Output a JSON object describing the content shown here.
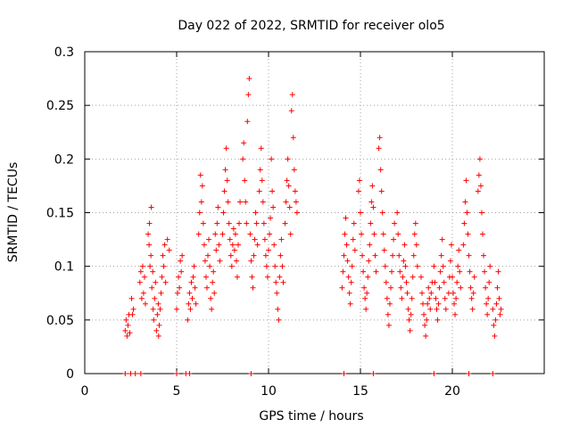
{
  "chart_data": {
    "type": "scatter",
    "title": "Day 022 of 2022, SRMTID for receiver olo5",
    "xlabel": "GPS time / hours",
    "ylabel": "SRMTID / TECUs",
    "xlim": [
      0,
      25
    ],
    "ylim": [
      0,
      0.3
    ],
    "xticks": [
      0,
      5,
      10,
      15,
      20
    ],
    "xtick_labels": [
      "0",
      "5",
      "10",
      "15",
      "20"
    ],
    "yticks": [
      0,
      0.05,
      0.1,
      0.15,
      0.2,
      0.25,
      0.3
    ],
    "ytick_labels": [
      "0",
      "0.05",
      "0.1",
      "0.15",
      "0.2",
      "0.25",
      "0.3"
    ],
    "grid": true,
    "marker": "+",
    "color": "#ff0000",
    "series": [
      {
        "name": "SRMTID",
        "points": [
          [
            2.2,
            0.04
          ],
          [
            2.25,
            0.05
          ],
          [
            2.3,
            0.035
          ],
          [
            2.35,
            0.045
          ],
          [
            2.4,
            0.055
          ],
          [
            2.45,
            0.038
          ],
          [
            2.55,
            0.07
          ],
          [
            2.6,
            0.055
          ],
          [
            2.65,
            0.06
          ],
          [
            3.0,
            0.085
          ],
          [
            3.05,
            0.095
          ],
          [
            3.1,
            0.07
          ],
          [
            3.15,
            0.1
          ],
          [
            3.2,
            0.075
          ],
          [
            3.25,
            0.09
          ],
          [
            3.3,
            0.065
          ],
          [
            3.45,
            0.13
          ],
          [
            3.5,
            0.12
          ],
          [
            3.52,
            0.14
          ],
          [
            3.55,
            0.1
          ],
          [
            3.6,
            0.11
          ],
          [
            3.62,
            0.155
          ],
          [
            3.65,
            0.08
          ],
          [
            3.7,
            0.095
          ],
          [
            3.72,
            0.06
          ],
          [
            3.75,
            0.05
          ],
          [
            3.8,
            0.07
          ],
          [
            3.85,
            0.085
          ],
          [
            3.9,
            0.04
          ],
          [
            3.95,
            0.055
          ],
          [
            4.0,
            0.065
          ],
          [
            4.02,
            0.035
          ],
          [
            4.05,
            0.045
          ],
          [
            4.1,
            0.06
          ],
          [
            4.15,
            0.075
          ],
          [
            4.2,
            0.09
          ],
          [
            4.25,
            0.11
          ],
          [
            4.3,
            0.1
          ],
          [
            4.35,
            0.12
          ],
          [
            4.4,
            0.085
          ],
          [
            4.5,
            0.125
          ],
          [
            4.6,
            0.115
          ],
          [
            5.0,
            0.06
          ],
          [
            5.05,
            0.075
          ],
          [
            5.1,
            0.09
          ],
          [
            5.15,
            0.08
          ],
          [
            5.2,
            0.105
          ],
          [
            5.25,
            0.095
          ],
          [
            5.3,
            0.11
          ],
          [
            5.6,
            0.05
          ],
          [
            5.65,
            0.065
          ],
          [
            5.7,
            0.075
          ],
          [
            5.75,
            0.06
          ],
          [
            5.8,
            0.085
          ],
          [
            5.85,
            0.07
          ],
          [
            5.9,
            0.09
          ],
          [
            5.95,
            0.1
          ],
          [
            6.0,
            0.08
          ],
          [
            6.05,
            0.065
          ],
          [
            6.2,
            0.13
          ],
          [
            6.25,
            0.15
          ],
          [
            6.3,
            0.185
          ],
          [
            6.35,
            0.16
          ],
          [
            6.4,
            0.175
          ],
          [
            6.45,
            0.14
          ],
          [
            6.5,
            0.12
          ],
          [
            6.55,
            0.105
          ],
          [
            6.6,
            0.09
          ],
          [
            6.65,
            0.08
          ],
          [
            6.7,
            0.11
          ],
          [
            6.75,
            0.125
          ],
          [
            6.8,
            0.1
          ],
          [
            6.85,
            0.07
          ],
          [
            6.9,
            0.06
          ],
          [
            6.95,
            0.085
          ],
          [
            7.0,
            0.095
          ],
          [
            7.05,
            0.075
          ],
          [
            7.1,
            0.13
          ],
          [
            7.15,
            0.115
          ],
          [
            7.2,
            0.14
          ],
          [
            7.25,
            0.155
          ],
          [
            7.3,
            0.12
          ],
          [
            7.35,
            0.105
          ],
          [
            7.5,
            0.13
          ],
          [
            7.55,
            0.15
          ],
          [
            7.6,
            0.17
          ],
          [
            7.65,
            0.19
          ],
          [
            7.7,
            0.21
          ],
          [
            7.75,
            0.18
          ],
          [
            7.8,
            0.16
          ],
          [
            7.85,
            0.14
          ],
          [
            7.9,
            0.125
          ],
          [
            7.95,
            0.11
          ],
          [
            8.0,
            0.1
          ],
          [
            8.05,
            0.12
          ],
          [
            8.1,
            0.135
          ],
          [
            8.15,
            0.115
          ],
          [
            8.2,
            0.13
          ],
          [
            8.25,
            0.105
          ],
          [
            8.3,
            0.09
          ],
          [
            8.35,
            0.12
          ],
          [
            8.4,
            0.14
          ],
          [
            8.45,
            0.16
          ],
          [
            8.6,
            0.2
          ],
          [
            8.65,
            0.215
          ],
          [
            8.7,
            0.18
          ],
          [
            8.75,
            0.16
          ],
          [
            8.8,
            0.14
          ],
          [
            8.85,
            0.235
          ],
          [
            8.9,
            0.26
          ],
          [
            8.95,
            0.275
          ],
          [
            9.0,
            0.13
          ],
          [
            9.05,
            0.105
          ],
          [
            9.1,
            0.09
          ],
          [
            9.15,
            0.08
          ],
          [
            9.2,
            0.11
          ],
          [
            9.25,
            0.125
          ],
          [
            9.3,
            0.15
          ],
          [
            9.35,
            0.14
          ],
          [
            9.4,
            0.12
          ],
          [
            9.5,
            0.17
          ],
          [
            9.55,
            0.19
          ],
          [
            9.6,
            0.21
          ],
          [
            9.65,
            0.18
          ],
          [
            9.7,
            0.16
          ],
          [
            9.75,
            0.14
          ],
          [
            9.8,
            0.125
          ],
          [
            9.85,
            0.11
          ],
          [
            9.9,
            0.1
          ],
          [
            9.95,
            0.09
          ],
          [
            10.0,
            0.115
          ],
          [
            10.05,
            0.13
          ],
          [
            10.1,
            0.145
          ],
          [
            10.15,
            0.2
          ],
          [
            10.2,
            0.17
          ],
          [
            10.25,
            0.155
          ],
          [
            10.3,
            0.12
          ],
          [
            10.35,
            0.1
          ],
          [
            10.4,
            0.085
          ],
          [
            10.45,
            0.075
          ],
          [
            10.5,
            0.06
          ],
          [
            10.55,
            0.05
          ],
          [
            10.6,
            0.09
          ],
          [
            10.65,
            0.11
          ],
          [
            10.7,
            0.125
          ],
          [
            10.75,
            0.1
          ],
          [
            10.8,
            0.085
          ],
          [
            10.9,
            0.14
          ],
          [
            10.95,
            0.16
          ],
          [
            11.0,
            0.18
          ],
          [
            11.05,
            0.2
          ],
          [
            11.1,
            0.175
          ],
          [
            11.15,
            0.155
          ],
          [
            11.2,
            0.13
          ],
          [
            11.25,
            0.245
          ],
          [
            11.3,
            0.26
          ],
          [
            11.35,
            0.22
          ],
          [
            11.4,
            0.19
          ],
          [
            11.45,
            0.17
          ],
          [
            11.5,
            0.16
          ],
          [
            11.55,
            0.15
          ],
          [
            14.0,
            0.08
          ],
          [
            14.05,
            0.095
          ],
          [
            14.1,
            0.11
          ],
          [
            14.15,
            0.13
          ],
          [
            14.2,
            0.145
          ],
          [
            14.25,
            0.12
          ],
          [
            14.3,
            0.105
          ],
          [
            14.35,
            0.09
          ],
          [
            14.4,
            0.075
          ],
          [
            14.45,
            0.065
          ],
          [
            14.5,
            0.085
          ],
          [
            14.55,
            0.1
          ],
          [
            14.6,
            0.125
          ],
          [
            14.65,
            0.14
          ],
          [
            14.7,
            0.115
          ],
          [
            14.9,
            0.17
          ],
          [
            14.95,
            0.18
          ],
          [
            15.0,
            0.15
          ],
          [
            15.05,
            0.13
          ],
          [
            15.1,
            0.11
          ],
          [
            15.15,
            0.095
          ],
          [
            15.2,
            0.08
          ],
          [
            15.25,
            0.07
          ],
          [
            15.3,
            0.06
          ],
          [
            15.35,
            0.075
          ],
          [
            15.4,
            0.09
          ],
          [
            15.45,
            0.105
          ],
          [
            15.5,
            0.12
          ],
          [
            15.55,
            0.14
          ],
          [
            15.6,
            0.16
          ],
          [
            15.65,
            0.175
          ],
          [
            15.7,
            0.155
          ],
          [
            15.75,
            0.13
          ],
          [
            15.8,
            0.11
          ],
          [
            15.85,
            0.095
          ],
          [
            16.0,
            0.21
          ],
          [
            16.05,
            0.22
          ],
          [
            16.1,
            0.19
          ],
          [
            16.15,
            0.17
          ],
          [
            16.2,
            0.15
          ],
          [
            16.25,
            0.13
          ],
          [
            16.3,
            0.115
          ],
          [
            16.35,
            0.1
          ],
          [
            16.4,
            0.085
          ],
          [
            16.45,
            0.07
          ],
          [
            16.5,
            0.055
          ],
          [
            16.55,
            0.045
          ],
          [
            16.6,
            0.065
          ],
          [
            16.65,
            0.08
          ],
          [
            16.7,
            0.095
          ],
          [
            16.75,
            0.11
          ],
          [
            16.8,
            0.125
          ],
          [
            16.85,
            0.14
          ],
          [
            17.0,
            0.15
          ],
          [
            17.05,
            0.13
          ],
          [
            17.1,
            0.11
          ],
          [
            17.15,
            0.095
          ],
          [
            17.2,
            0.08
          ],
          [
            17.25,
            0.07
          ],
          [
            17.3,
            0.09
          ],
          [
            17.35,
            0.105
          ],
          [
            17.4,
            0.12
          ],
          [
            17.45,
            0.1
          ],
          [
            17.5,
            0.085
          ],
          [
            17.55,
            0.075
          ],
          [
            17.6,
            0.06
          ],
          [
            17.65,
            0.05
          ],
          [
            17.7,
            0.04
          ],
          [
            17.75,
            0.055
          ],
          [
            17.8,
            0.07
          ],
          [
            17.85,
            0.09
          ],
          [
            17.9,
            0.11
          ],
          [
            17.95,
            0.13
          ],
          [
            18.0,
            0.14
          ],
          [
            18.05,
            0.12
          ],
          [
            18.1,
            0.1
          ],
          [
            18.3,
            0.09
          ],
          [
            18.35,
            0.075
          ],
          [
            18.4,
            0.065
          ],
          [
            18.45,
            0.055
          ],
          [
            18.5,
            0.045
          ],
          [
            18.55,
            0.035
          ],
          [
            18.6,
            0.05
          ],
          [
            18.65,
            0.065
          ],
          [
            18.7,
            0.08
          ],
          [
            18.75,
            0.07
          ],
          [
            18.8,
            0.06
          ],
          [
            18.85,
            0.075
          ],
          [
            18.9,
            0.085
          ],
          [
            19.0,
            0.1
          ],
          [
            19.05,
            0.085
          ],
          [
            19.1,
            0.07
          ],
          [
            19.15,
            0.06
          ],
          [
            19.2,
            0.05
          ],
          [
            19.25,
            0.065
          ],
          [
            19.3,
            0.08
          ],
          [
            19.35,
            0.095
          ],
          [
            19.4,
            0.11
          ],
          [
            19.45,
            0.125
          ],
          [
            19.5,
            0.1
          ],
          [
            19.55,
            0.085
          ],
          [
            19.6,
            0.07
          ],
          [
            19.65,
            0.06
          ],
          [
            19.8,
            0.075
          ],
          [
            19.85,
            0.09
          ],
          [
            19.9,
            0.105
          ],
          [
            19.95,
            0.12
          ],
          [
            20.0,
            0.09
          ],
          [
            20.05,
            0.075
          ],
          [
            20.1,
            0.065
          ],
          [
            20.15,
            0.055
          ],
          [
            20.2,
            0.07
          ],
          [
            20.25,
            0.085
          ],
          [
            20.3,
            0.1
          ],
          [
            20.35,
            0.115
          ],
          [
            20.4,
            0.095
          ],
          [
            20.45,
            0.08
          ],
          [
            20.6,
            0.12
          ],
          [
            20.65,
            0.14
          ],
          [
            20.7,
            0.16
          ],
          [
            20.75,
            0.18
          ],
          [
            20.8,
            0.15
          ],
          [
            20.85,
            0.13
          ],
          [
            20.9,
            0.11
          ],
          [
            20.95,
            0.095
          ],
          [
            21.0,
            0.08
          ],
          [
            21.05,
            0.07
          ],
          [
            21.1,
            0.06
          ],
          [
            21.15,
            0.075
          ],
          [
            21.2,
            0.09
          ],
          [
            21.4,
            0.17
          ],
          [
            21.45,
            0.185
          ],
          [
            21.5,
            0.2
          ],
          [
            21.55,
            0.175
          ],
          [
            21.6,
            0.15
          ],
          [
            21.65,
            0.13
          ],
          [
            21.7,
            0.11
          ],
          [
            21.75,
            0.095
          ],
          [
            21.8,
            0.08
          ],
          [
            21.85,
            0.065
          ],
          [
            21.9,
            0.055
          ],
          [
            21.95,
            0.07
          ],
          [
            22.0,
            0.085
          ],
          [
            22.05,
            0.1
          ],
          [
            22.2,
            0.06
          ],
          [
            22.25,
            0.045
          ],
          [
            22.3,
            0.035
          ],
          [
            22.35,
            0.05
          ],
          [
            22.4,
            0.065
          ],
          [
            22.45,
            0.08
          ],
          [
            22.5,
            0.095
          ],
          [
            22.55,
            0.07
          ],
          [
            22.6,
            0.055
          ],
          [
            22.65,
            0.06
          ]
        ]
      }
    ],
    "zero_points_x": [
      2.2,
      2.5,
      2.75,
      3.05,
      5.0,
      5.5,
      5.7,
      9.05,
      14.1,
      15.7,
      19.0,
      20.9,
      22.2
    ]
  }
}
